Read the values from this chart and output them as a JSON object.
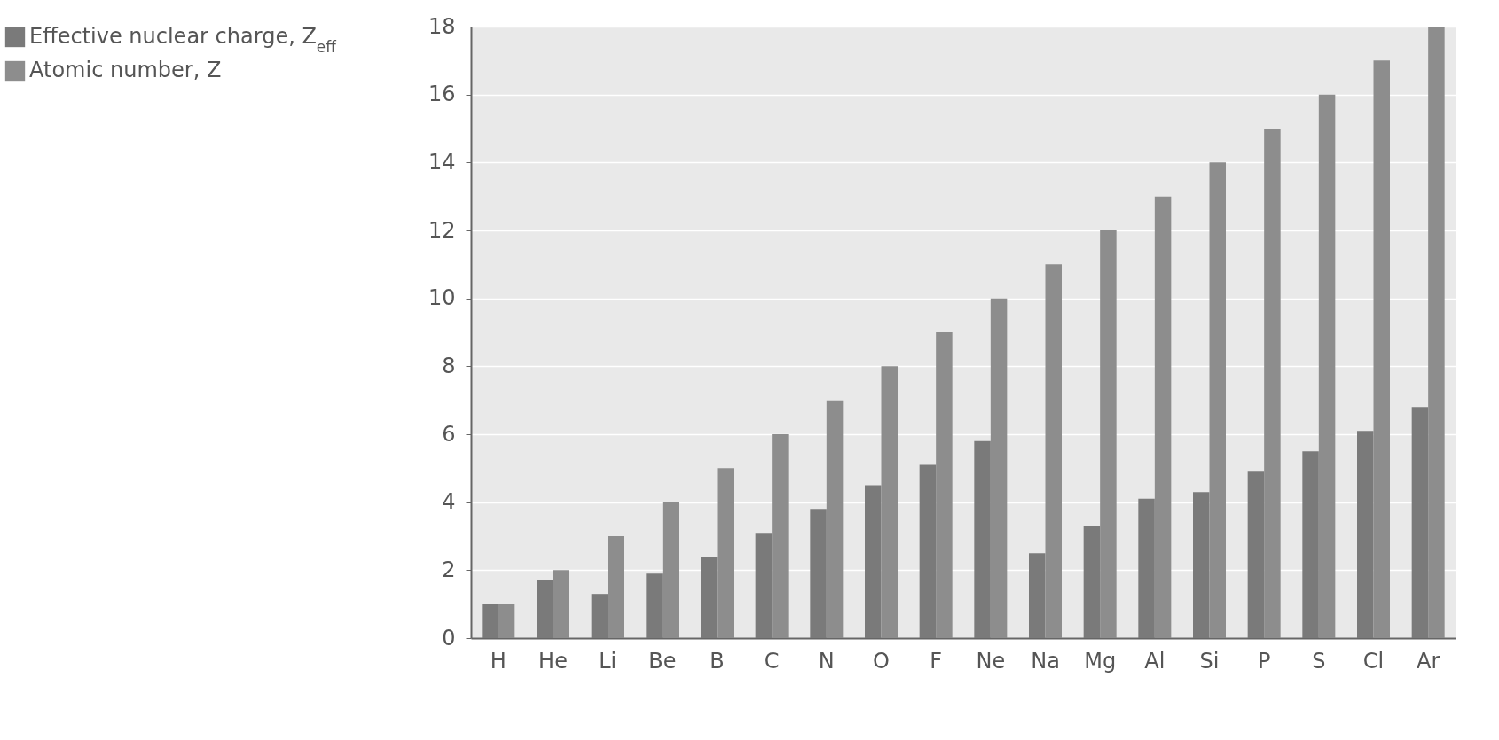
{
  "chart_data": {
    "type": "bar",
    "categories": [
      "H",
      "He",
      "Li",
      "Be",
      "B",
      "C",
      "N",
      "O",
      "F",
      "Ne",
      "Na",
      "Mg",
      "Al",
      "Si",
      "P",
      "S",
      "Cl",
      "Ar"
    ],
    "series": [
      {
        "name": "Effective nuclear charge, Z$_{eff}$",
        "color": "#7a7a7a",
        "values": [
          1.0,
          1.7,
          1.3,
          1.9,
          2.4,
          3.1,
          3.8,
          4.5,
          5.1,
          5.8,
          2.5,
          3.3,
          4.1,
          4.3,
          4.9,
          5.5,
          6.1,
          6.8
        ]
      },
      {
        "name": "Atomic number, Z",
        "color": "#8d8d8d",
        "values": [
          1,
          2,
          3,
          4,
          5,
          6,
          7,
          8,
          9,
          10,
          11,
          12,
          13,
          14,
          15,
          16,
          17,
          18
        ]
      }
    ],
    "ylim": [
      0,
      18
    ],
    "yticks": [
      0,
      2,
      4,
      6,
      8,
      10,
      12,
      14,
      16,
      18
    ],
    "grid": "y",
    "legend": "left"
  }
}
